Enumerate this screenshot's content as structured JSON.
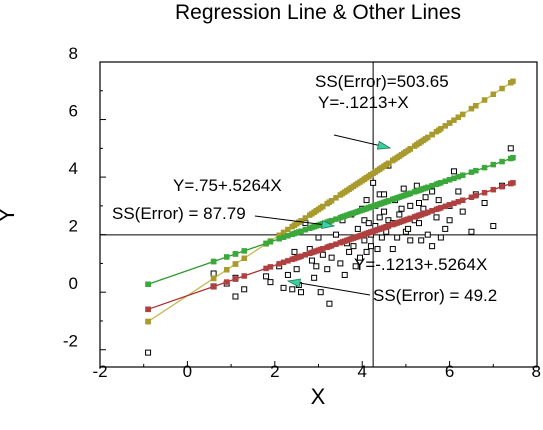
{
  "chart_data": {
    "type": "scatter",
    "title": "Regression Line & Other Lines",
    "xlabel": "X",
    "ylabel": "Y",
    "xlim": [
      -2,
      8
    ],
    "ylim": [
      -2.6,
      8
    ],
    "x_ticks": [
      -2,
      0,
      2,
      4,
      6,
      8
    ],
    "x_tick_labels": [
      "-2",
      "0",
      "2",
      "4",
      "6",
      "8"
    ],
    "y_ticks": [
      -2,
      0,
      2,
      4,
      6,
      8
    ],
    "y_tick_labels": [
      "-2",
      "0",
      "2",
      "4",
      "6",
      "8"
    ],
    "grid": false,
    "reference_lines": {
      "x": 4.25,
      "y": 1.99
    },
    "colors": {
      "frame": "#000000",
      "points": "#000000",
      "olive_line": "#c8b850",
      "olive_marker": "#a89a2c",
      "green_line": "#2c9a2c",
      "green_marker": "#3aa83a",
      "red_line": "#a83030",
      "red_marker": "#b04040",
      "arrow_fill": "#3ccfa0"
    },
    "scatter_points": [
      [
        -0.9,
        -2.1
      ],
      [
        0.6,
        0.65
      ],
      [
        0.6,
        0.2
      ],
      [
        0.9,
        0.3
      ],
      [
        1.1,
        0.5
      ],
      [
        1.1,
        -0.15
      ],
      [
        1.3,
        0.1
      ],
      [
        1.8,
        0.55
      ],
      [
        1.9,
        0.35
      ],
      [
        2.1,
        0.9
      ],
      [
        2.2,
        0.15
      ],
      [
        2.3,
        0.6
      ],
      [
        2.4,
        0.1
      ],
      [
        2.45,
        1.4
      ],
      [
        2.5,
        0.8
      ],
      [
        2.55,
        0.25
      ],
      [
        2.6,
        0.0
      ],
      [
        2.7,
        2.4
      ],
      [
        2.8,
        1.5
      ],
      [
        2.85,
        1.1
      ],
      [
        2.9,
        0.5
      ],
      [
        2.95,
        0.9
      ],
      [
        3.0,
        1.9
      ],
      [
        3.05,
        0.0
      ],
      [
        3.1,
        1.3
      ],
      [
        3.2,
        0.8
      ],
      [
        3.25,
        -0.4
      ],
      [
        3.3,
        1.2
      ],
      [
        3.4,
        2.0
      ],
      [
        3.5,
        1.0
      ],
      [
        3.55,
        2.5
      ],
      [
        3.6,
        0.6
      ],
      [
        3.65,
        1.7
      ],
      [
        3.7,
        1.4
      ],
      [
        3.75,
        2.7
      ],
      [
        3.8,
        1.6
      ],
      [
        3.85,
        0.9
      ],
      [
        3.9,
        2.2
      ],
      [
        3.95,
        1.2
      ],
      [
        4.0,
        2.9
      ],
      [
        4.05,
        2.5
      ],
      [
        4.05,
        1.8
      ],
      [
        4.1,
        3.2
      ],
      [
        4.1,
        1.4
      ],
      [
        4.15,
        2.4
      ],
      [
        4.2,
        2.0
      ],
      [
        4.2,
        1.6
      ],
      [
        4.25,
        3.8
      ],
      [
        4.3,
        3.0
      ],
      [
        4.3,
        2.3
      ],
      [
        4.35,
        1.5
      ],
      [
        4.4,
        3.4
      ],
      [
        4.4,
        2.6
      ],
      [
        4.45,
        1.9
      ],
      [
        4.5,
        2.8
      ],
      [
        4.5,
        3.4
      ],
      [
        4.55,
        2.1
      ],
      [
        4.6,
        4.4
      ],
      [
        4.6,
        2.5
      ],
      [
        4.7,
        1.5
      ],
      [
        4.7,
        2.4
      ],
      [
        4.75,
        3.2
      ],
      [
        4.8,
        1.9
      ],
      [
        4.85,
        2.7
      ],
      [
        4.9,
        2.9
      ],
      [
        4.95,
        3.6
      ],
      [
        5.0,
        2.1
      ],
      [
        5.05,
        2.2
      ],
      [
        5.1,
        1.8
      ],
      [
        5.1,
        3.0
      ],
      [
        5.2,
        2.5
      ],
      [
        5.25,
        3.7
      ],
      [
        5.3,
        3.1
      ],
      [
        5.3,
        2.4
      ],
      [
        5.35,
        1.8
      ],
      [
        5.4,
        2.9
      ],
      [
        5.45,
        3.3
      ],
      [
        5.5,
        2.0
      ],
      [
        5.6,
        3.5
      ],
      [
        5.6,
        1.6
      ],
      [
        5.7,
        2.6
      ],
      [
        5.75,
        3.2
      ],
      [
        5.8,
        1.9
      ],
      [
        5.9,
        2.2
      ],
      [
        6.0,
        3.0
      ],
      [
        6.0,
        2.5
      ],
      [
        6.1,
        4.2
      ],
      [
        6.2,
        3.5
      ],
      [
        6.3,
        2.8
      ],
      [
        6.5,
        2.1
      ],
      [
        6.6,
        3.4
      ],
      [
        6.8,
        3.1
      ],
      [
        7.0,
        2.3
      ],
      [
        7.2,
        3.7
      ],
      [
        7.4,
        5.0
      ]
    ],
    "series": [
      {
        "label": "Y=-.1213+X",
        "intercept": -0.1213,
        "slope": 1.0,
        "x_range": [
          -0.9,
          7.45
        ]
      },
      {
        "label": "Y=.75+.5264X",
        "intercept": 0.75,
        "slope": 0.5264,
        "x_range": [
          -0.9,
          7.45
        ]
      },
      {
        "label": "Y=-.1213+.5264X",
        "intercept": -0.1213,
        "slope": 0.5264,
        "x_range": [
          -0.9,
          7.45
        ]
      }
    ],
    "annotations": [
      {
        "text": "SS(Error)=503.65"
      },
      {
        "text": "Y=-.1213+X"
      },
      {
        "text": "Y=.75+.5264X"
      },
      {
        "text": "SS(Error) = 87.79"
      },
      {
        "text": "Y=-.1213+.5264X"
      },
      {
        "text": "SS(Error) = 49.2"
      }
    ]
  }
}
